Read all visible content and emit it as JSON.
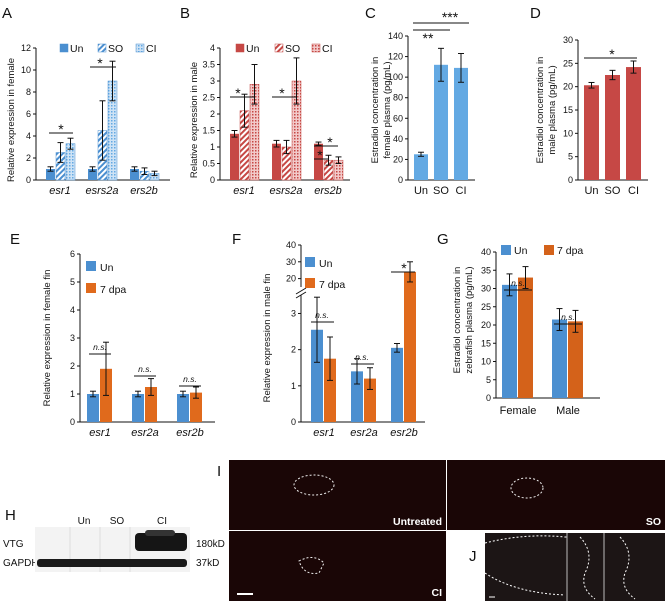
{
  "panels": {
    "A": {
      "letter": "A",
      "ylabel": "Relative expression in female",
      "legend": [
        "Un",
        "SO",
        "CI"
      ],
      "categories": [
        "esr1",
        "esrs2a",
        "ers2b"
      ],
      "yticks": [
        "0",
        "2",
        "4",
        "6",
        "8",
        "10",
        "12"
      ],
      "sig": [
        "*",
        "*"
      ]
    },
    "B": {
      "letter": "B",
      "ylabel": "Relative expression in male",
      "legend": [
        "Un",
        "SO",
        "CI"
      ],
      "categories": [
        "esr1",
        "esrs2a",
        "ers2b"
      ],
      "yticks": [
        "0",
        "0.5",
        "1",
        "1.5",
        "2",
        "2.5",
        "3",
        "3.5",
        "4"
      ],
      "sig": [
        "*",
        "*",
        "*",
        "*"
      ]
    },
    "C": {
      "letter": "C",
      "ylabel1": "Estradiol concentration in",
      "ylabel2": "female plasma (pg/mL)",
      "categories": [
        "Un",
        "SO",
        "CI"
      ],
      "yticks": [
        "0",
        "20",
        "40",
        "60",
        "80",
        "100",
        "120",
        "140"
      ],
      "sig": [
        "**",
        "***"
      ]
    },
    "D": {
      "letter": "D",
      "ylabel1": "Estradiol concentration in",
      "ylabel2": "male plasma (pg/mL)",
      "categories": [
        "Un",
        "SO",
        "CI"
      ],
      "yticks": [
        "0",
        "5",
        "10",
        "15",
        "20",
        "25",
        "30"
      ],
      "sig": [
        "*"
      ]
    },
    "E": {
      "letter": "E",
      "ylabel": "Relative expression in female fin",
      "legend": [
        "Un",
        "7 dpa"
      ],
      "categories": [
        "esr1",
        "esr2a",
        "esr2b"
      ],
      "yticks": [
        "0",
        "1",
        "2",
        "3",
        "4",
        "5",
        "6"
      ],
      "ns": [
        "n.s.",
        "n.s.",
        "n.s."
      ]
    },
    "F": {
      "letter": "F",
      "ylabel": "Relative expression in male fin",
      "legend": [
        "Un",
        "7 dpa"
      ],
      "categories": [
        "esr1",
        "esr2a",
        "esr2b"
      ],
      "yticks_low": [
        "0",
        "1",
        "2",
        "3"
      ],
      "yticks_high": [
        "20",
        "30",
        "40"
      ],
      "ns": [
        "n.s.",
        "n.s."
      ],
      "sig": [
        "*"
      ]
    },
    "G": {
      "letter": "G",
      "ylabel1": "Estradiol concentration in",
      "ylabel2": "zebrafish plasma (pg/mL)",
      "legend": [
        "Un",
        "7 dpa"
      ],
      "categories": [
        "Female",
        "Male"
      ],
      "yticks": [
        "0",
        "5",
        "10",
        "15",
        "20",
        "25",
        "30",
        "35",
        "40"
      ],
      "ns": [
        "n.s.",
        "n.s."
      ]
    },
    "H": {
      "letter": "H",
      "lanes": [
        "Un",
        "SO",
        "CI"
      ],
      "rows": [
        "VTG",
        "GAPDH"
      ],
      "sizes": [
        "180kD",
        "37kD"
      ]
    },
    "I": {
      "letter": "I",
      "labels": [
        "Untreated",
        "SO",
        "CI"
      ]
    },
    "J": {
      "letter": "J"
    }
  },
  "colors": {
    "blue": "#4b8fd0",
    "red": "#c64845",
    "orange": "#e06a1c",
    "darkorange": "#d4621a",
    "lightblue": "#63a9e3"
  },
  "chart_data": [
    {
      "type": "bar",
      "panel": "A",
      "categories": [
        "esr1",
        "esrs2a",
        "ers2b"
      ],
      "ylabel": "Relative expression in female",
      "ylim": [
        0,
        12
      ],
      "series": [
        {
          "name": "Un",
          "values": [
            1.0,
            1.0,
            1.0
          ]
        },
        {
          "name": "SO",
          "values": [
            2.5,
            4.5,
            0.8
          ]
        },
        {
          "name": "CI",
          "values": [
            3.3,
            9.0,
            0.6
          ]
        }
      ]
    },
    {
      "type": "bar",
      "panel": "B",
      "categories": [
        "esr1",
        "esrs2a",
        "ers2b"
      ],
      "ylabel": "Relative expression in male",
      "ylim": [
        0,
        4
      ],
      "series": [
        {
          "name": "Un",
          "values": [
            1.4,
            1.1,
            1.1
          ]
        },
        {
          "name": "SO",
          "values": [
            2.1,
            1.0,
            0.6
          ]
        },
        {
          "name": "CI",
          "values": [
            2.9,
            3.0,
            0.6
          ]
        }
      ]
    },
    {
      "type": "bar",
      "panel": "C",
      "categories": [
        "Un",
        "SO",
        "CI"
      ],
      "ylabel": "Estradiol concentration in female plasma (pg/mL)",
      "ylim": [
        0,
        140
      ],
      "values": [
        25,
        112,
        109
      ]
    },
    {
      "type": "bar",
      "panel": "D",
      "categories": [
        "Un",
        "SO",
        "CI"
      ],
      "ylabel": "Estradiol concentration in male plasma (pg/mL)",
      "ylim": [
        0,
        30
      ],
      "values": [
        20.3,
        22.5,
        24.2
      ]
    },
    {
      "type": "bar",
      "panel": "E",
      "categories": [
        "esr1",
        "esr2a",
        "esr2b"
      ],
      "ylabel": "Relative expression in female fin",
      "ylim": [
        0,
        6
      ],
      "series": [
        {
          "name": "Un",
          "values": [
            1.0,
            1.0,
            1.0
          ]
        },
        {
          "name": "7 dpa",
          "values": [
            1.9,
            1.25,
            1.05
          ]
        }
      ]
    },
    {
      "type": "bar",
      "panel": "F",
      "categories": [
        "esr1",
        "esr2a",
        "esr2b"
      ],
      "ylabel": "Relative expression in male fin",
      "ylim": [
        0,
        40
      ],
      "series": [
        {
          "name": "Un",
          "values": [
            2.55,
            1.4,
            2.05
          ]
        },
        {
          "name": "7 dpa",
          "values": [
            1.75,
            1.2,
            24
          ]
        }
      ]
    },
    {
      "type": "bar",
      "panel": "G",
      "categories": [
        "Female",
        "Male"
      ],
      "ylabel": "Estradiol concentration in zebrafish plasma (pg/mL)",
      "ylim": [
        0,
        40
      ],
      "series": [
        {
          "name": "Un",
          "values": [
            31,
            21.5
          ]
        },
        {
          "name": "7 dpa",
          "values": [
            33,
            21
          ]
        }
      ]
    }
  ]
}
